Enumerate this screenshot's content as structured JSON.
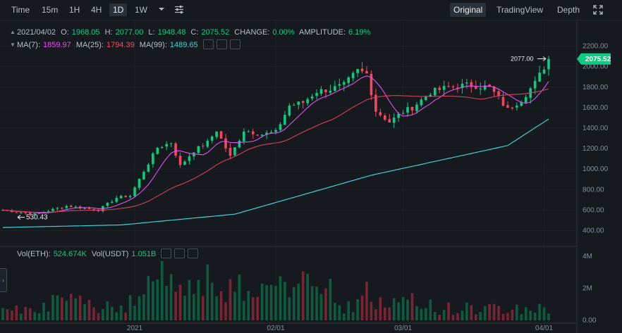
{
  "toolbar": {
    "intervals": [
      {
        "label": "Time",
        "active": false
      },
      {
        "label": "15m",
        "active": false
      },
      {
        "label": "1H",
        "active": false
      },
      {
        "label": "4H",
        "active": false
      },
      {
        "label": "1D",
        "active": true
      },
      {
        "label": "1W",
        "active": false
      }
    ],
    "views": [
      {
        "label": "Original",
        "active": true
      },
      {
        "label": "TradingView",
        "active": false
      },
      {
        "label": "Depth",
        "active": false
      }
    ],
    "icons": [
      "caret-down-icon",
      "settings-sliders-icon",
      "fullscreen-icon"
    ]
  },
  "ohlc": {
    "date": "2021/04/02",
    "o_label": "O:",
    "o": "1968.05",
    "h_label": "H:",
    "h": "2077.00",
    "l_label": "L:",
    "l": "1948.48",
    "c_label": "C:",
    "c": "2075.52",
    "change_label": "CHANGE:",
    "change": "0.00%",
    "amp_label": "AMPLITUDE:",
    "amp": "6.19%"
  },
  "ma": {
    "ma7_label": "MA(7):",
    "ma7": "1859.97",
    "ma25_label": "MA(25):",
    "ma25": "1794.39",
    "ma99_label": "MA(99):",
    "ma99": "1489.65"
  },
  "vol": {
    "eth_label": "Vol(ETH):",
    "eth": "524.674K",
    "usdt_label": "Vol(USDT)",
    "usdt": "1.051B"
  },
  "price_axis": [
    "2200.00",
    "2000.00",
    "1800.00",
    "1600.00",
    "1400.00",
    "1200.00",
    "1000.00",
    "800.00",
    "600.00",
    "400.00"
  ],
  "vol_axis": [
    "4M",
    "2M",
    "0.00"
  ],
  "date_axis": [
    "2021",
    "02/01",
    "03/01",
    "04/01"
  ],
  "markers": {
    "last_price": "2075.52",
    "high_label": "2077.00",
    "low_label": "530.43"
  },
  "colors": {
    "up": "#0ecb81",
    "down": "#f6465d",
    "ma7": "#e44ef3",
    "ma25": "#d8405f",
    "ma99": "#3bd3d8",
    "background": "#161a1e"
  },
  "chart_data": {
    "type": "candlestick",
    "x_start": "2020-12-03",
    "x_end": "2021-04-02",
    "interval": "1D",
    "ylim": [
      300,
      2300
    ],
    "anchors_close": [
      [
        "2020-12-03",
        600
      ],
      [
        "2020-12-10",
        560
      ],
      [
        "2020-12-17",
        640
      ],
      [
        "2020-12-24",
        600
      ],
      [
        "2020-12-28",
        720
      ],
      [
        "2020-12-31",
        740
      ],
      [
        "2021-01-03",
        980
      ],
      [
        "2021-01-06",
        1210
      ],
      [
        "2021-01-09",
        1260
      ],
      [
        "2021-01-11",
        1030
      ],
      [
        "2021-01-14",
        1180
      ],
      [
        "2021-01-17",
        1260
      ],
      [
        "2021-01-19",
        1380
      ],
      [
        "2021-01-22",
        1120
      ],
      [
        "2021-01-25",
        1380
      ],
      [
        "2021-01-29",
        1340
      ],
      [
        "2021-02-01",
        1360
      ],
      [
        "2021-02-04",
        1620
      ],
      [
        "2021-02-07",
        1650
      ],
      [
        "2021-02-10",
        1760
      ],
      [
        "2021-02-13",
        1780
      ],
      [
        "2021-02-16",
        1820
      ],
      [
        "2021-02-19",
        1960
      ],
      [
        "2021-02-21",
        1930
      ],
      [
        "2021-02-23",
        1570
      ],
      [
        "2021-02-26",
        1460
      ],
      [
        "2021-03-01",
        1560
      ],
      [
        "2021-03-03",
        1600
      ],
      [
        "2021-03-07",
        1750
      ],
      [
        "2021-03-11",
        1800
      ],
      [
        "2021-03-15",
        1820
      ],
      [
        "2021-03-20",
        1800
      ],
      [
        "2021-03-24",
        1580
      ],
      [
        "2021-03-27",
        1680
      ],
      [
        "2021-03-30",
        1840
      ],
      [
        "2021-04-02",
        2075.52
      ]
    ],
    "ma99_anchors": [
      [
        "2020-12-03",
        430
      ],
      [
        "2020-12-29",
        455
      ],
      [
        "2021-01-23",
        560
      ],
      [
        "2021-02-22",
        940
      ],
      [
        "2021-03-24",
        1230
      ],
      [
        "2021-04-02",
        1489.65
      ]
    ]
  }
}
